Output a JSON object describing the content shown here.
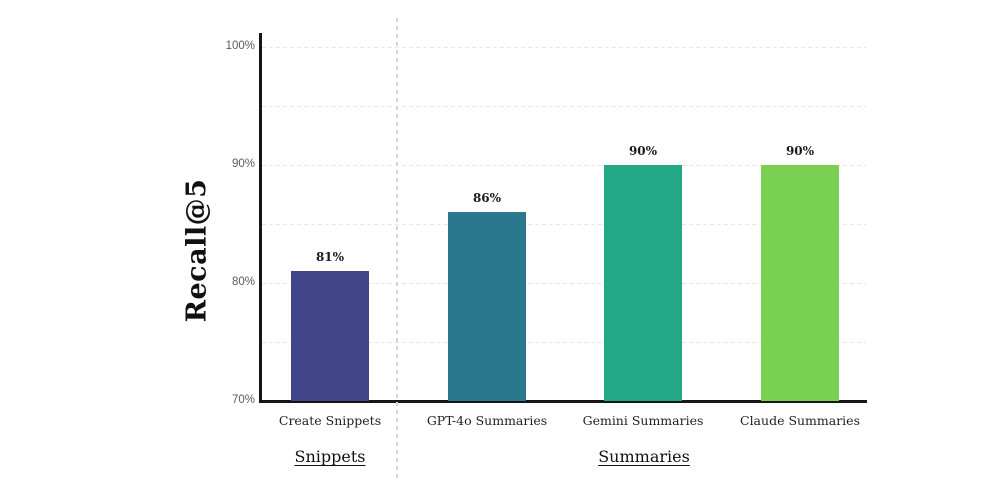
{
  "chart_data": {
    "type": "bar",
    "ylabel": "Recall@5",
    "xlabel": "",
    "categories": [
      "Create Snippets",
      "GPT-4o Summaries",
      "Gemini Summaries",
      "Claude Summaries"
    ],
    "values": [
      81,
      86,
      90,
      90
    ],
    "value_labels": [
      "81%",
      "86%",
      "90%",
      "90%"
    ],
    "bar_colors": [
      "#414487",
      "#2a788e",
      "#22a884",
      "#7ad151"
    ],
    "groups": [
      {
        "label": "Snippets",
        "categories": [
          "Create Snippets"
        ]
      },
      {
        "label": "Summaries",
        "categories": [
          "GPT-4o Summaries",
          "Gemini Summaries",
          "Claude Summaries"
        ]
      }
    ],
    "ylim": [
      70,
      100
    ],
    "yticks": [
      "70%",
      "80%",
      "90%",
      "100%"
    ],
    "ytick_values": [
      70,
      80,
      90,
      100
    ],
    "gridline_values": [
      75,
      80,
      85,
      90,
      95,
      100
    ],
    "grid": true,
    "legend": false,
    "background": "#ffffff",
    "axis_color": "#161616",
    "separator_style": "dashed"
  }
}
